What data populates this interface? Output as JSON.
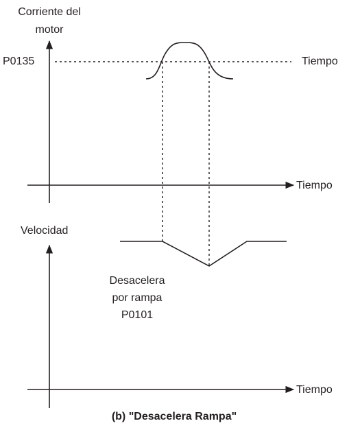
{
  "top_graph": {
    "y_label_line1": "Corriente del",
    "y_label_line2": "motor",
    "level_label": "P0135",
    "level_time_label": "Tiempo",
    "x_label": "Tiempo"
  },
  "bottom_graph": {
    "y_label": "Velocidad",
    "annotation_line1": "Desacelera",
    "annotation_line2": "por rampa",
    "annotation_line3": "P0101",
    "x_label": "Tiempo"
  },
  "caption": "(b) \"Desacelera Rampa\""
}
